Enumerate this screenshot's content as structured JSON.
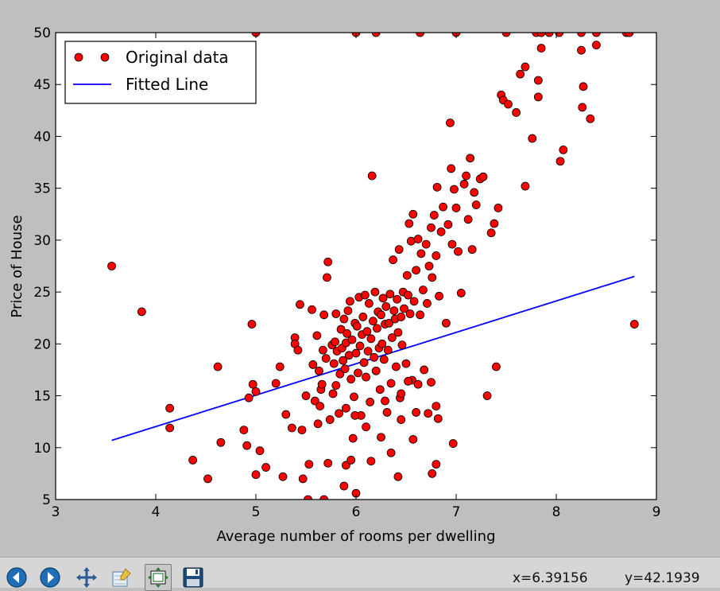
{
  "chart_data": {
    "type": "scatter",
    "title": "",
    "xlabel": "Average number of rooms per dwelling",
    "ylabel": "Price of House",
    "xlim": [
      3,
      9
    ],
    "ylim": [
      5,
      50
    ],
    "xticks": [
      "3",
      "4",
      "5",
      "6",
      "7",
      "8",
      "9"
    ],
    "yticks": [
      "5",
      "10",
      "15",
      "20",
      "25",
      "30",
      "35",
      "40",
      "45",
      "50"
    ],
    "grid": false,
    "legend_position": "top-left",
    "series": [
      {
        "name": "Original data",
        "kind": "scatter",
        "color": "#ff0000",
        "points": [
          [
            3.56,
            27.5
          ],
          [
            3.86,
            23.1
          ],
          [
            4.14,
            13.8
          ],
          [
            4.14,
            11.9
          ],
          [
            4.37,
            8.8
          ],
          [
            4.52,
            7.0
          ],
          [
            4.62,
            17.8
          ],
          [
            4.65,
            10.5
          ],
          [
            4.88,
            11.7
          ],
          [
            4.91,
            10.2
          ],
          [
            4.93,
            14.8
          ],
          [
            4.96,
            21.9
          ],
          [
            4.97,
            16.1
          ],
          [
            5.0,
            7.4
          ],
          [
            5.0,
            15.4
          ],
          [
            5.04,
            9.7
          ],
          [
            5.0,
            50.0
          ],
          [
            5.1,
            8.1
          ],
          [
            5.2,
            16.2
          ],
          [
            5.24,
            17.8
          ],
          [
            5.27,
            7.2
          ],
          [
            5.3,
            13.2
          ],
          [
            5.36,
            11.9
          ],
          [
            5.39,
            20.6
          ],
          [
            5.39,
            20.0
          ],
          [
            5.42,
            19.4
          ],
          [
            5.44,
            23.8
          ],
          [
            5.46,
            11.7
          ],
          [
            5.47,
            7.0
          ],
          [
            5.5,
            15.0
          ],
          [
            5.52,
            5.0
          ],
          [
            5.56,
            23.3
          ],
          [
            5.57,
            18.0
          ],
          [
            5.59,
            14.5
          ],
          [
            5.61,
            20.8
          ],
          [
            5.62,
            12.3
          ],
          [
            5.63,
            17.4
          ],
          [
            5.64,
            14.0
          ],
          [
            5.65,
            15.6
          ],
          [
            5.66,
            16.1
          ],
          [
            5.67,
            19.4
          ],
          [
            5.68,
            22.8
          ],
          [
            5.7,
            18.6
          ],
          [
            5.71,
            26.4
          ],
          [
            5.72,
            27.9
          ],
          [
            5.74,
            12.7
          ],
          [
            5.76,
            19.9
          ],
          [
            5.77,
            15.2
          ],
          [
            5.78,
            18.1
          ],
          [
            5.79,
            20.2
          ],
          [
            5.8,
            22.9
          ],
          [
            5.8,
            16.0
          ],
          [
            5.81,
            19.3
          ],
          [
            5.83,
            13.3
          ],
          [
            5.84,
            17.1
          ],
          [
            5.85,
            21.4
          ],
          [
            5.86,
            19.6
          ],
          [
            5.87,
            18.4
          ],
          [
            5.88,
            22.4
          ],
          [
            5.89,
            17.6
          ],
          [
            5.9,
            20.1
          ],
          [
            5.9,
            13.8
          ],
          [
            5.91,
            21.0
          ],
          [
            5.92,
            23.2
          ],
          [
            5.93,
            18.9
          ],
          [
            5.94,
            24.1
          ],
          [
            5.95,
            16.6
          ],
          [
            5.96,
            20.4
          ],
          [
            5.97,
            10.9
          ],
          [
            5.98,
            14.9
          ],
          [
            5.99,
            22.0
          ],
          [
            6.0,
            19.1
          ],
          [
            6.01,
            21.7
          ],
          [
            6.02,
            17.2
          ],
          [
            6.03,
            24.5
          ],
          [
            6.04,
            19.8
          ],
          [
            6.05,
            13.1
          ],
          [
            6.06,
            20.9
          ],
          [
            6.07,
            22.6
          ],
          [
            6.08,
            18.2
          ],
          [
            6.09,
            24.7
          ],
          [
            6.1,
            16.8
          ],
          [
            6.11,
            21.2
          ],
          [
            6.12,
            19.3
          ],
          [
            6.13,
            23.9
          ],
          [
            6.14,
            14.4
          ],
          [
            6.15,
            20.5
          ],
          [
            6.16,
            36.2
          ],
          [
            6.17,
            22.2
          ],
          [
            6.18,
            18.7
          ],
          [
            6.19,
            25.0
          ],
          [
            6.2,
            17.4
          ],
          [
            6.21,
            21.5
          ],
          [
            6.22,
            23.1
          ],
          [
            6.23,
            19.6
          ],
          [
            6.24,
            15.6
          ],
          [
            6.25,
            22.8
          ],
          [
            6.26,
            20.0
          ],
          [
            6.27,
            24.4
          ],
          [
            6.28,
            18.5
          ],
          [
            6.29,
            21.9
          ],
          [
            6.3,
            23.6
          ],
          [
            6.31,
            13.4
          ],
          [
            6.32,
            19.4
          ],
          [
            6.33,
            22.0
          ],
          [
            6.34,
            24.8
          ],
          [
            6.35,
            16.2
          ],
          [
            6.36,
            20.6
          ],
          [
            6.37,
            28.1
          ],
          [
            6.38,
            23.2
          ],
          [
            6.39,
            22.4
          ],
          [
            6.4,
            17.8
          ],
          [
            6.41,
            24.3
          ],
          [
            6.42,
            21.1
          ],
          [
            6.43,
            29.1
          ],
          [
            6.44,
            14.8
          ],
          [
            6.45,
            22.6
          ],
          [
            6.46,
            19.9
          ],
          [
            6.47,
            25.0
          ],
          [
            6.48,
            23.4
          ],
          [
            6.5,
            18.1
          ],
          [
            6.51,
            26.6
          ],
          [
            6.52,
            24.7
          ],
          [
            6.53,
            31.6
          ],
          [
            6.54,
            22.9
          ],
          [
            6.55,
            29.9
          ],
          [
            6.56,
            16.5
          ],
          [
            6.57,
            32.5
          ],
          [
            6.58,
            24.1
          ],
          [
            6.6,
            27.1
          ],
          [
            6.62,
            30.1
          ],
          [
            6.64,
            22.8
          ],
          [
            6.65,
            28.7
          ],
          [
            6.67,
            25.2
          ],
          [
            6.7,
            29.6
          ],
          [
            6.71,
            23.9
          ],
          [
            6.73,
            27.5
          ],
          [
            6.75,
            31.2
          ],
          [
            6.76,
            26.4
          ],
          [
            6.78,
            32.4
          ],
          [
            6.8,
            28.5
          ],
          [
            6.81,
            35.1
          ],
          [
            6.83,
            24.6
          ],
          [
            6.85,
            30.8
          ],
          [
            6.87,
            33.2
          ],
          [
            6.9,
            22.0
          ],
          [
            6.92,
            31.5
          ],
          [
            6.94,
            41.3
          ],
          [
            6.95,
            36.9
          ],
          [
            6.96,
            29.6
          ],
          [
            6.98,
            34.9
          ],
          [
            7.0,
            33.1
          ],
          [
            7.02,
            28.9
          ],
          [
            7.05,
            24.9
          ],
          [
            7.08,
            35.4
          ],
          [
            7.1,
            36.2
          ],
          [
            7.12,
            32.0
          ],
          [
            7.14,
            37.9
          ],
          [
            7.16,
            29.1
          ],
          [
            7.18,
            34.6
          ],
          [
            7.2,
            33.4
          ],
          [
            7.24,
            35.9
          ],
          [
            7.27,
            36.1
          ],
          [
            7.31,
            15.0
          ],
          [
            7.35,
            30.7
          ],
          [
            7.38,
            31.6
          ],
          [
            7.4,
            17.8
          ],
          [
            7.42,
            33.1
          ],
          [
            6.0,
            50.0
          ],
          [
            6.2,
            50.0
          ],
          [
            6.64,
            50.0
          ],
          [
            7.0,
            50.0
          ],
          [
            7.5,
            50.0
          ],
          [
            7.8,
            50.0
          ],
          [
            7.85,
            50.0
          ],
          [
            7.93,
            50.0
          ],
          [
            8.03,
            50.0
          ],
          [
            8.25,
            50.0
          ],
          [
            8.4,
            50.0
          ],
          [
            8.7,
            50.0
          ],
          [
            8.73,
            50.0
          ],
          [
            7.45,
            44.0
          ],
          [
            7.47,
            43.5
          ],
          [
            7.52,
            43.1
          ],
          [
            7.6,
            42.3
          ],
          [
            7.64,
            46.0
          ],
          [
            7.69,
            46.7
          ],
          [
            7.76,
            39.8
          ],
          [
            7.82,
            43.8
          ],
          [
            7.82,
            45.4
          ],
          [
            7.85,
            48.5
          ],
          [
            8.04,
            37.6
          ],
          [
            8.07,
            38.7
          ],
          [
            8.25,
            48.3
          ],
          [
            8.26,
            42.8
          ],
          [
            8.27,
            44.8
          ],
          [
            8.34,
            41.7
          ],
          [
            8.4,
            48.8
          ],
          [
            8.78,
            21.9
          ],
          [
            7.69,
            35.2
          ],
          [
            6.97,
            10.4
          ],
          [
            6.76,
            7.5
          ],
          [
            6.8,
            8.4
          ],
          [
            6.42,
            7.2
          ],
          [
            6.57,
            10.8
          ],
          [
            5.88,
            6.3
          ],
          [
            6.0,
            5.6
          ],
          [
            5.68,
            5.0
          ],
          [
            5.53,
            8.4
          ],
          [
            5.72,
            8.5
          ],
          [
            5.9,
            8.3
          ],
          [
            5.95,
            8.8
          ],
          [
            6.15,
            8.7
          ],
          [
            6.35,
            9.5
          ],
          [
            6.82,
            12.8
          ],
          [
            6.25,
            11.0
          ],
          [
            6.45,
            12.7
          ],
          [
            6.6,
            13.4
          ],
          [
            6.72,
            13.3
          ],
          [
            6.8,
            14.0
          ],
          [
            6.1,
            12.0
          ],
          [
            5.99,
            13.1
          ],
          [
            6.29,
            14.5
          ],
          [
            6.45,
            15.2
          ],
          [
            6.52,
            16.4
          ],
          [
            6.62,
            16.1
          ],
          [
            6.68,
            17.5
          ],
          [
            6.75,
            16.3
          ]
        ]
      },
      {
        "name": "Fitted Line",
        "kind": "line",
        "color": "#0000ff",
        "x": [
          3.56,
          8.78
        ],
        "y": [
          10.7,
          26.5
        ]
      }
    ]
  },
  "toolbar": {
    "buttons": [
      {
        "icon": "back-arrow-icon",
        "color": "#1f6fb8"
      },
      {
        "icon": "forward-arrow-icon",
        "color": "#1f6fb8"
      },
      {
        "icon": "pan-move-icon",
        "color": "#2a5b94"
      },
      {
        "icon": "zoom-rectangle-icon",
        "color": "#6b8fb3"
      },
      {
        "icon": "configure-subplots-icon",
        "color": "#2d7a3a"
      },
      {
        "icon": "save-disk-icon",
        "color": "#1e4c7a"
      }
    ],
    "coord_x": "x=6.39156",
    "coord_y": "y=42.1939"
  }
}
